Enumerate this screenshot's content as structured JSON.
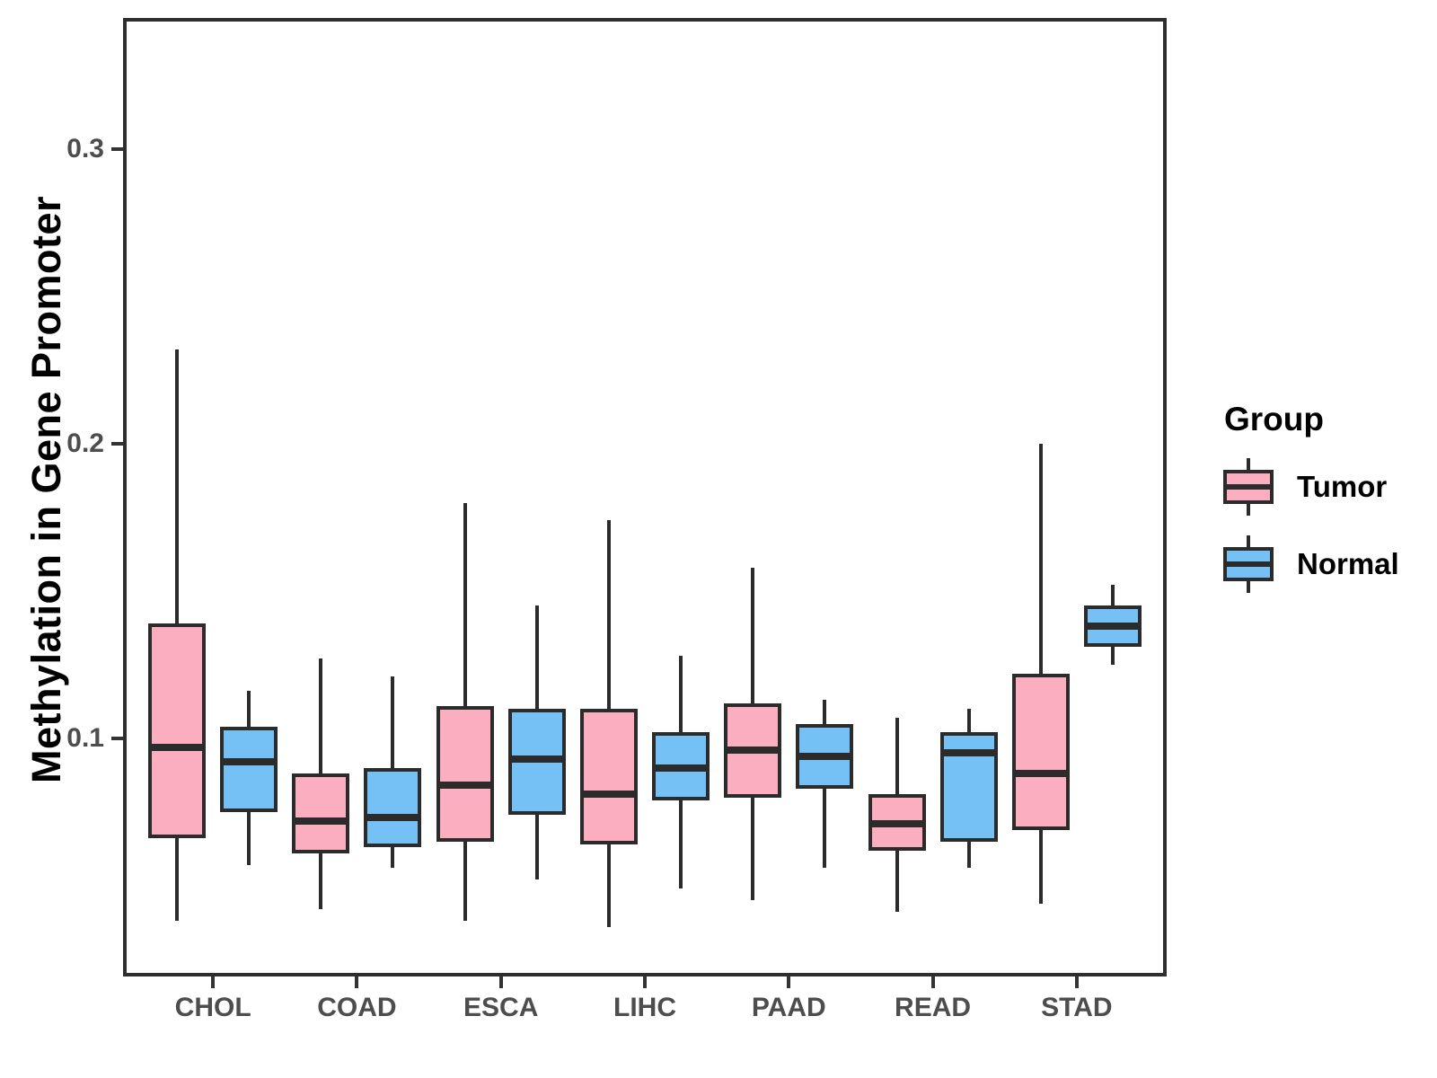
{
  "chart_data": {
    "type": "grouped_boxplot",
    "title": "",
    "xlabel": "",
    "ylabel": "Methylation in Gene Promoter",
    "categories": [
      "CHOL",
      "COAD",
      "ESCA",
      "LIHC",
      "PAAD",
      "READ",
      "STAD"
    ],
    "yticks": [
      0.1,
      0.2,
      0.3
    ],
    "ytick_labels": [
      "0.1",
      "0.2",
      "0.3"
    ],
    "ylim": [
      0.0204,
      0.3433
    ],
    "grid": "off",
    "legend": {
      "title": "Group",
      "position": "right"
    },
    "series": [
      {
        "name": "Tumor",
        "color": "#FBAEC0",
        "boxes": [
          {
            "category": "CHOL",
            "low": 0.038,
            "q1": 0.066,
            "median": 0.097,
            "q3": 0.139,
            "high": 0.232
          },
          {
            "category": "COAD",
            "low": 0.042,
            "q1": 0.061,
            "median": 0.072,
            "q3": 0.088,
            "high": 0.127
          },
          {
            "category": "ESCA",
            "low": 0.038,
            "q1": 0.065,
            "median": 0.084,
            "q3": 0.111,
            "high": 0.18
          },
          {
            "category": "LIHC",
            "low": 0.036,
            "q1": 0.064,
            "median": 0.081,
            "q3": 0.11,
            "high": 0.174
          },
          {
            "category": "PAAD",
            "low": 0.045,
            "q1": 0.08,
            "median": 0.096,
            "q3": 0.112,
            "high": 0.158
          },
          {
            "category": "READ",
            "low": 0.041,
            "q1": 0.062,
            "median": 0.071,
            "q3": 0.081,
            "high": 0.107
          },
          {
            "category": "STAD",
            "low": 0.044,
            "q1": 0.069,
            "median": 0.088,
            "q3": 0.122,
            "high": 0.2
          }
        ]
      },
      {
        "name": "Normal",
        "color": "#75C1F5",
        "boxes": [
          {
            "category": "CHOL",
            "low": 0.057,
            "q1": 0.075,
            "median": 0.092,
            "q3": 0.104,
            "high": 0.116
          },
          {
            "category": "COAD",
            "low": 0.056,
            "q1": 0.063,
            "median": 0.073,
            "q3": 0.09,
            "high": 0.121
          },
          {
            "category": "ESCA",
            "low": 0.052,
            "q1": 0.074,
            "median": 0.093,
            "q3": 0.11,
            "high": 0.145
          },
          {
            "category": "LIHC",
            "low": 0.049,
            "q1": 0.079,
            "median": 0.09,
            "q3": 0.102,
            "high": 0.128
          },
          {
            "category": "PAAD",
            "low": 0.056,
            "q1": 0.083,
            "median": 0.094,
            "q3": 0.105,
            "high": 0.113
          },
          {
            "category": "READ",
            "low": 0.056,
            "q1": 0.065,
            "median": 0.095,
            "q3": 0.102,
            "high": 0.11
          },
          {
            "category": "STAD",
            "low": 0.125,
            "q1": 0.131,
            "median": 0.138,
            "q3": 0.145,
            "high": 0.152
          }
        ]
      }
    ]
  },
  "colors": {
    "tumor_fill": "#FBAEC0",
    "normal_fill": "#75C1F5",
    "box_stroke": "#2B2B2B",
    "panel_border": "#2E2E2E",
    "axis_text": "#4D4D4D",
    "title_text": "#000000",
    "background": "#FFFFFF"
  }
}
